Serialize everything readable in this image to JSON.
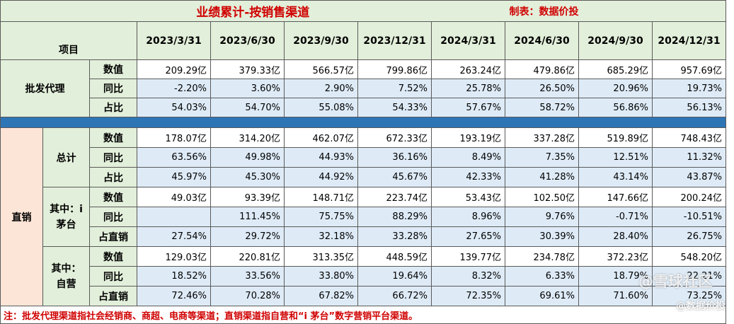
{
  "title": "业绩累计-按销售渠道",
  "maker": "制表：数据价投",
  "header": {
    "item": "项目",
    "dates": [
      "2023/3/31",
      "2023/6/30",
      "2023/9/30",
      "2023/12/31",
      "2024/3/31",
      "2024/6/30",
      "2024/9/30",
      "2024/12/31"
    ]
  },
  "wholesale": {
    "label": "批发代理",
    "rows": [
      {
        "label": "数值",
        "values": [
          "209.29亿",
          "379.33亿",
          "566.57亿",
          "799.86亿",
          "263.24亿",
          "479.86亿",
          "685.29亿",
          "957.69亿"
        ]
      },
      {
        "label": "同比",
        "values": [
          "-2.20%",
          "3.60%",
          "2.90%",
          "7.52%",
          "25.78%",
          "26.50%",
          "20.96%",
          "19.73%"
        ]
      },
      {
        "label": "占比",
        "values": [
          "54.03%",
          "54.70%",
          "55.08%",
          "54.33%",
          "57.67%",
          "58.72%",
          "56.86%",
          "56.13%"
        ]
      }
    ]
  },
  "direct": {
    "label": "直销",
    "total": {
      "label": "总计",
      "rows": [
        {
          "label": "数值",
          "values": [
            "178.07亿",
            "314.20亿",
            "462.07亿",
            "672.33亿",
            "193.19亿",
            "337.28亿",
            "519.89亿",
            "748.43亿"
          ]
        },
        {
          "label": "同比",
          "values": [
            "63.56%",
            "49.98%",
            "44.93%",
            "36.16%",
            "8.49%",
            "7.35%",
            "12.51%",
            "11.32%"
          ]
        },
        {
          "label": "占比",
          "values": [
            "45.97%",
            "45.30%",
            "44.92%",
            "45.67%",
            "42.33%",
            "41.28%",
            "43.14%",
            "43.87%"
          ]
        }
      ]
    },
    "imoutai": {
      "label_line1": "其中：i",
      "label_line2": "茅台",
      "rows": [
        {
          "label": "数值",
          "values": [
            "49.03亿",
            "93.39亿",
            "148.71亿",
            "223.74亿",
            "53.43亿",
            "102.50亿",
            "147.66亿",
            "200.24亿"
          ]
        },
        {
          "label": "同比",
          "values": [
            "",
            "111.45%",
            "75.75%",
            "88.29%",
            "8.96%",
            "9.76%",
            "-0.71%",
            "-10.51%"
          ]
        },
        {
          "label": "占直销",
          "values": [
            "27.54%",
            "29.72%",
            "32.18%",
            "33.28%",
            "27.65%",
            "30.39%",
            "28.40%",
            "26.75%"
          ]
        }
      ]
    },
    "self": {
      "label_line1": "其中：",
      "label_line2": "自营",
      "rows": [
        {
          "label": "数值",
          "values": [
            "129.03亿",
            "220.81亿",
            "313.35亿",
            "448.59亿",
            "139.77亿",
            "234.78亿",
            "372.23亿",
            "548.20亿"
          ]
        },
        {
          "label": "同比",
          "values": [
            "18.52%",
            "33.56%",
            "33.80%",
            "19.64%",
            "8.32%",
            "6.33%",
            "18.79%",
            "22.21%"
          ]
        },
        {
          "label": "占直销",
          "values": [
            "72.46%",
            "70.28%",
            "67.82%",
            "66.72%",
            "72.35%",
            "69.61%",
            "71.60%",
            "73.25%"
          ]
        }
      ]
    }
  },
  "note": "注：批发代理渠道指社会经销商、商超、电商等渠道；直销渠道指自营和“i 茅台”数字营销平台渠道。",
  "watermark": {
    "main": "@雪球社区",
    "sub": "@数据价投"
  }
}
